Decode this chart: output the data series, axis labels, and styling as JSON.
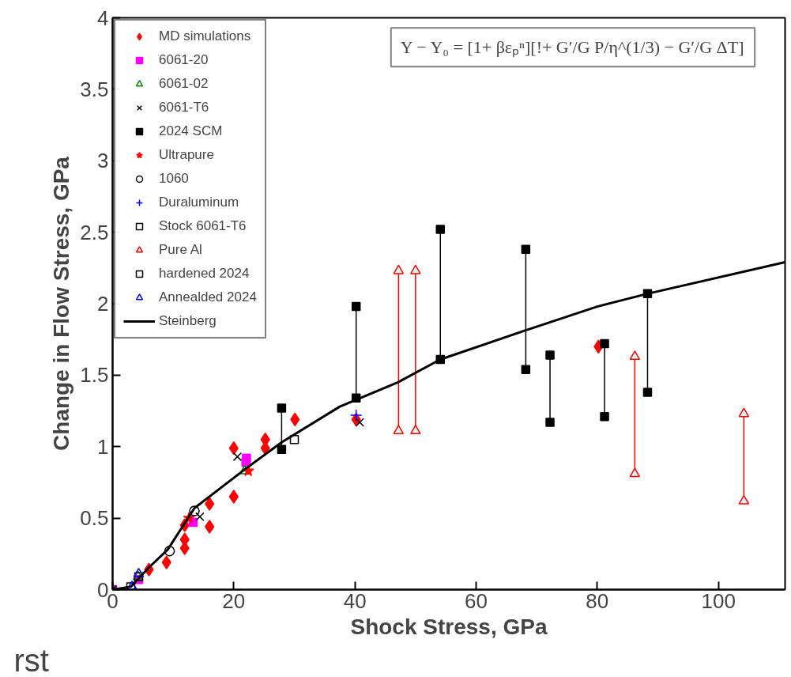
{
  "chart_data": {
    "type": "scatter",
    "xlabel": "Shock Stress, GPa",
    "ylabel": "Change in Flow Stress, GPa",
    "xlim": [
      0,
      111
    ],
    "ylim": [
      0,
      4
    ],
    "xticks": [
      0,
      20,
      40,
      60,
      80,
      100
    ],
    "yticks": [
      0,
      0.5,
      1,
      1.5,
      2,
      2.5,
      3,
      3.5,
      4
    ],
    "grid": false,
    "legend": "top left",
    "annotations": [
      "Y − Y₀ = [1+ βεₚⁿ][!+ G′/G P/η^(1/3) − G′/G ΔT]",
      "rst"
    ],
    "series": [
      {
        "name": "MD simulations",
        "marker": "diamond",
        "color": "#ff0000",
        "x": [
          6.0,
          8.9,
          11.9,
          11.9,
          11.9,
          16,
          16,
          20,
          20,
          25.2,
          25.2,
          30.1,
          40.2,
          80.2
        ],
        "values": [
          0.14,
          0.19,
          0.35,
          0.29,
          0.45,
          0.6,
          0.44,
          0.65,
          0.99,
          1.05,
          0.99,
          1.19,
          1.19,
          1.7
        ]
      },
      {
        "name": "6061-20",
        "marker": "square",
        "color": "#ff00ff",
        "x": [
          0,
          4.3,
          13.3,
          22.1,
          22
        ],
        "values": [
          0,
          0.07,
          0.47,
          0.92,
          0.89
        ]
      },
      {
        "name": "6061-02",
        "marker": "triangle",
        "color": "#008000",
        "x": [
          0,
          4.2,
          21.8
        ],
        "values": [
          0,
          0.09,
          0.83
        ]
      },
      {
        "name": "6061-T6",
        "marker": "x",
        "color": "#000000",
        "x": [
          0,
          14.4,
          20.6,
          40.8
        ],
        "values": [
          0,
          0.51,
          0.93,
          1.17
        ]
      },
      {
        "name": "2024 SCM",
        "type": "line",
        "marker": "square",
        "color": "#000000",
        "x": [
          27.9,
          27.9,
          null,
          40.2,
          40.2,
          null,
          54.1,
          54.1,
          null,
          68.2,
          68.2,
          null,
          72.2,
          72.2,
          null,
          81.2,
          81.2,
          null,
          88.3,
          88.3
        ],
        "values": [
          0.98,
          1.27,
          null,
          1.34,
          1.98,
          null,
          1.61,
          2.52,
          null,
          1.54,
          2.38,
          null,
          1.17,
          1.64,
          null,
          1.21,
          1.72,
          null,
          1.38,
          2.07
        ]
      },
      {
        "name": "Ultrapure",
        "marker": "star",
        "color": "#ff0000",
        "x": [
          12.6,
          22.4
        ],
        "values": [
          0.5,
          0.83
        ]
      },
      {
        "name": "1060",
        "marker": "circle",
        "color": "#000000",
        "x": [
          9.4,
          13.5
        ],
        "values": [
          0.27,
          0.55
        ]
      },
      {
        "name": "Duraluminum",
        "marker": "cross",
        "color": "#0000ff",
        "x": [
          40.2
        ],
        "values": [
          1.22
        ]
      },
      {
        "name": "Stock 6061-T6",
        "color": "#000000",
        "x": [
          4.3,
          30.0
        ],
        "values": [
          0.09,
          1.05
        ]
      },
      {
        "name": "Pure Al",
        "type": "line",
        "marker": "triangle",
        "color": "#ff0000",
        "x": [
          47.2,
          47.2,
          null,
          50.0,
          50.0,
          null,
          86.2,
          86.2,
          null,
          104.2,
          104.2
        ],
        "values": [
          1.11,
          2.23,
          null,
          1.11,
          2.23,
          null,
          0.81,
          1.63,
          null,
          0.62,
          1.23
        ]
      },
      {
        "name": "hardened 2024",
        "color": "#000000",
        "x": [
          3.0
        ],
        "values": [
          0.02
        ]
      },
      {
        "name": "Annealded 2024",
        "marker": "triangle",
        "color": "#0000ff",
        "x": [
          3.2,
          4.3
        ],
        "values": [
          0.02,
          0.11
        ]
      },
      {
        "name": "Steinberg",
        "type": "line",
        "marker": "none",
        "color": "#000000",
        "x": [
          0,
          3,
          6,
          9.1,
          13.5,
          21.8,
          27.9,
          37.5,
          47.1,
          54.1,
          67.9,
          80,
          88.3,
          111
        ],
        "values": [
          0,
          0.02,
          0.155,
          0.28,
          0.57,
          0.84,
          1.03,
          1.28,
          1.45,
          1.61,
          1.81,
          1.98,
          2.07,
          2.29
        ]
      }
    ]
  }
}
